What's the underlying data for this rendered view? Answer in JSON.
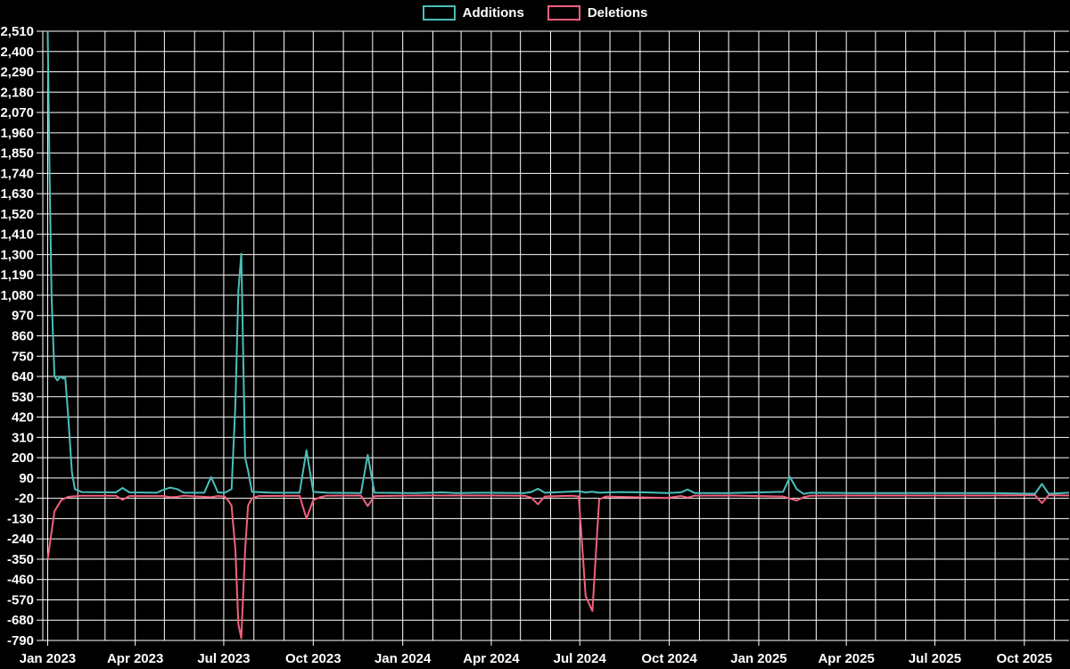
{
  "chart_data": {
    "type": "line",
    "title": "",
    "background_color": "#000000",
    "grid": true,
    "grid_color": "#ffffff",
    "text_color": "#ffffff",
    "legend_position": "top-center",
    "x_axis": {
      "type": "time",
      "xlim": [
        "2022-12-27",
        "2025-11-16"
      ],
      "minor_grid": "monthly",
      "tick_labels": [
        {
          "label": "Jan 2023",
          "date": "2023-01-01"
        },
        {
          "label": "Apr 2023",
          "date": "2023-04-01"
        },
        {
          "label": "Jul 2023",
          "date": "2023-07-01"
        },
        {
          "label": "Oct 2023",
          "date": "2023-10-01"
        },
        {
          "label": "Jan 2024",
          "date": "2024-01-01"
        },
        {
          "label": "Apr 2024",
          "date": "2024-04-01"
        },
        {
          "label": "Jul 2024",
          "date": "2024-07-01"
        },
        {
          "label": "Oct 2024",
          "date": "2024-10-01"
        },
        {
          "label": "Jan 2025",
          "date": "2025-01-01"
        },
        {
          "label": "Apr 2025",
          "date": "2025-04-01"
        },
        {
          "label": "Jul 2025",
          "date": "2025-07-01"
        },
        {
          "label": "Oct 2025",
          "date": "2025-10-01"
        }
      ]
    },
    "y_axis": {
      "ylim": [
        -790,
        2510
      ],
      "tick_step": 110,
      "format": "thousands-comma"
    },
    "series": [
      {
        "name": "Additions",
        "color": "#4abfbb",
        "points": [
          [
            "2023-01-01",
            2510
          ],
          [
            "2023-01-03",
            1740
          ],
          [
            "2023-01-05",
            1080
          ],
          [
            "2023-01-08",
            640
          ],
          [
            "2023-01-11",
            618
          ],
          [
            "2023-01-14",
            640
          ],
          [
            "2023-01-17",
            628
          ],
          [
            "2023-01-19",
            640
          ],
          [
            "2023-01-22",
            430
          ],
          [
            "2023-01-26",
            120
          ],
          [
            "2023-01-29",
            30
          ],
          [
            "2023-02-05",
            14
          ],
          [
            "2023-03-12",
            12
          ],
          [
            "2023-03-19",
            36
          ],
          [
            "2023-03-26",
            12
          ],
          [
            "2023-04-23",
            10
          ],
          [
            "2023-04-30",
            26
          ],
          [
            "2023-05-07",
            38
          ],
          [
            "2023-05-14",
            30
          ],
          [
            "2023-05-21",
            10
          ],
          [
            "2023-06-11",
            10
          ],
          [
            "2023-06-18",
            95
          ],
          [
            "2023-06-25",
            12
          ],
          [
            "2023-07-02",
            10
          ],
          [
            "2023-07-09",
            30
          ],
          [
            "2023-07-13",
            490
          ],
          [
            "2023-07-16",
            1100
          ],
          [
            "2023-07-19",
            1305
          ],
          [
            "2023-07-23",
            200
          ],
          [
            "2023-07-26",
            130
          ],
          [
            "2023-07-30",
            15
          ],
          [
            "2023-08-20",
            10
          ],
          [
            "2023-09-17",
            10
          ],
          [
            "2023-09-24",
            240
          ],
          [
            "2023-10-01",
            15
          ],
          [
            "2023-10-15",
            10
          ],
          [
            "2023-11-19",
            8
          ],
          [
            "2023-11-26",
            215
          ],
          [
            "2023-12-03",
            10
          ],
          [
            "2024-01-14",
            8
          ],
          [
            "2024-02-11",
            12
          ],
          [
            "2024-02-25",
            8
          ],
          [
            "2024-03-24",
            10
          ],
          [
            "2024-05-05",
            8
          ],
          [
            "2024-05-12",
            14
          ],
          [
            "2024-05-19",
            32
          ],
          [
            "2024-05-26",
            10
          ],
          [
            "2024-06-30",
            18
          ],
          [
            "2024-07-07",
            12
          ],
          [
            "2024-07-14",
            16
          ],
          [
            "2024-07-21",
            10
          ],
          [
            "2024-08-11",
            14
          ],
          [
            "2024-09-08",
            12
          ],
          [
            "2024-09-29",
            8
          ],
          [
            "2024-10-13",
            12
          ],
          [
            "2024-10-20",
            28
          ],
          [
            "2024-10-27",
            8
          ],
          [
            "2024-12-01",
            8
          ],
          [
            "2025-01-26",
            15
          ],
          [
            "2025-02-02",
            95
          ],
          [
            "2025-02-09",
            30
          ],
          [
            "2025-02-16",
            4
          ],
          [
            "2025-02-23",
            10
          ],
          [
            "2025-04-06",
            8
          ],
          [
            "2025-06-15",
            8
          ],
          [
            "2025-08-24",
            8
          ],
          [
            "2025-10-12",
            5
          ],
          [
            "2025-10-19",
            58
          ],
          [
            "2025-10-26",
            5
          ],
          [
            "2025-11-16",
            10
          ]
        ]
      },
      {
        "name": "Deletions",
        "color": "#f2607e",
        "points": [
          [
            "2023-01-01",
            -350
          ],
          [
            "2023-01-04",
            -240
          ],
          [
            "2023-01-08",
            -90
          ],
          [
            "2023-01-15",
            -30
          ],
          [
            "2023-01-22",
            -12
          ],
          [
            "2023-02-05",
            -6
          ],
          [
            "2023-03-12",
            -6
          ],
          [
            "2023-03-19",
            -28
          ],
          [
            "2023-03-26",
            -8
          ],
          [
            "2023-04-30",
            -8
          ],
          [
            "2023-05-07",
            -14
          ],
          [
            "2023-05-14",
            -12
          ],
          [
            "2023-05-21",
            -6
          ],
          [
            "2023-06-18",
            -14
          ],
          [
            "2023-06-25",
            -8
          ],
          [
            "2023-07-02",
            -10
          ],
          [
            "2023-07-06",
            -35
          ],
          [
            "2023-07-09",
            -60
          ],
          [
            "2023-07-13",
            -300
          ],
          [
            "2023-07-16",
            -700
          ],
          [
            "2023-07-19",
            -778
          ],
          [
            "2023-07-23",
            -300
          ],
          [
            "2023-07-26",
            -60
          ],
          [
            "2023-07-30",
            -20
          ],
          [
            "2023-08-06",
            -8
          ],
          [
            "2023-09-17",
            -6
          ],
          [
            "2023-09-24",
            -130
          ],
          [
            "2023-10-01",
            -30
          ],
          [
            "2023-10-08",
            -14
          ],
          [
            "2023-10-15",
            -6
          ],
          [
            "2023-11-19",
            -5
          ],
          [
            "2023-11-26",
            -62
          ],
          [
            "2023-12-03",
            -8
          ],
          [
            "2024-01-14",
            -5
          ],
          [
            "2024-03-24",
            -5
          ],
          [
            "2024-05-05",
            -6
          ],
          [
            "2024-05-12",
            -16
          ],
          [
            "2024-05-19",
            -52
          ],
          [
            "2024-05-26",
            -10
          ],
          [
            "2024-06-23",
            -6
          ],
          [
            "2024-06-30",
            -10
          ],
          [
            "2024-07-07",
            -550
          ],
          [
            "2024-07-14",
            -630
          ],
          [
            "2024-07-21",
            -25
          ],
          [
            "2024-07-28",
            -10
          ],
          [
            "2024-08-11",
            -12
          ],
          [
            "2024-09-29",
            -18
          ],
          [
            "2024-10-13",
            -8
          ],
          [
            "2024-10-20",
            -16
          ],
          [
            "2024-10-27",
            -6
          ],
          [
            "2024-12-01",
            -5
          ],
          [
            "2025-01-26",
            -10
          ],
          [
            "2025-02-02",
            -22
          ],
          [
            "2025-02-09",
            -32
          ],
          [
            "2025-02-16",
            -14
          ],
          [
            "2025-02-23",
            -6
          ],
          [
            "2025-04-06",
            -5
          ],
          [
            "2025-06-15",
            -5
          ],
          [
            "2025-08-24",
            -5
          ],
          [
            "2025-10-12",
            -3
          ],
          [
            "2025-10-19",
            -46
          ],
          [
            "2025-10-26",
            -3
          ],
          [
            "2025-11-16",
            -5
          ]
        ]
      }
    ]
  }
}
